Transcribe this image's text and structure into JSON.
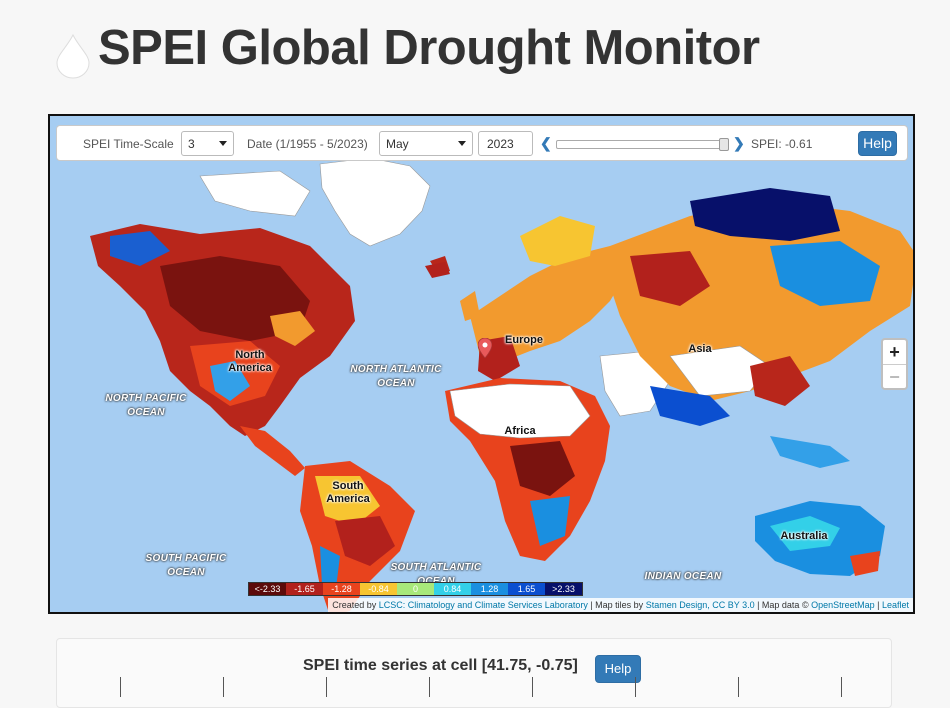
{
  "page": {
    "title": "SPEI Global Drought Monitor",
    "icon": "water-drop-icon"
  },
  "toolbar": {
    "timescale_label": "SPEI Time-Scale",
    "timescale_value": "3",
    "date_label": "Date (1/1955 - 5/2023)",
    "month_value": "May",
    "year_value": "2023",
    "prev_icon": "chevron-left-icon",
    "next_icon": "chevron-right-icon",
    "slider_position_fraction": 1.0,
    "spei_readout": "SPEI: -0.61",
    "help_label": "Help"
  },
  "map": {
    "zoom_in": "+",
    "zoom_out": "−",
    "continent_labels": {
      "north_america": "North America",
      "south_america": "South America",
      "europe": "Europe",
      "africa": "Africa",
      "asia": "Asia",
      "australia": "Australia"
    },
    "ocean_labels": {
      "north_pacific": "NORTH PACIFIC OCEAN",
      "north_atlantic": "NORTH ATLANTIC OCEAN",
      "south_pacific": "SOUTH PACIFIC OCEAN",
      "south_atlantic": "SOUTH ATLANTIC OCEAN",
      "indian": "INDIAN OCEAN"
    },
    "legend": [
      {
        "label": "<-2.33",
        "color": "#5c0a0a"
      },
      {
        "label": "-1.65",
        "color": "#b2211c"
      },
      {
        "label": "-1.28",
        "color": "#e8431d"
      },
      {
        "label": "-0.84",
        "color": "#f7c531"
      },
      {
        "label": "0",
        "color": "#a8e87a"
      },
      {
        "label": "0.84",
        "color": "#33d0e8"
      },
      {
        "label": "1.28",
        "color": "#1a8fe0"
      },
      {
        "label": "1.65",
        "color": "#0b4fd0"
      },
      {
        "label": ">2.33",
        "color": "#07106a"
      }
    ],
    "attribution": {
      "created_by": "Created by ",
      "lcsc_link": "LCSC: Climatology and Climate Services Laboratory",
      "tiles_by": " | Map tiles by ",
      "stamen_link": "Stamen Design, CC BY 3.0",
      "data_by": " | Map data © ",
      "osm_link": "OpenStreetMap",
      "sep": " | ",
      "leaflet_link": "Leaflet"
    },
    "colors": {
      "ocean": "#a6cdf2",
      "drought": "#c62a1b",
      "wet": "#1454c8",
      "neutral": "#f0b43a",
      "no_data": "#ffffff"
    }
  },
  "timeseries": {
    "title": "SPEI time series at cell [41.75, -0.75]",
    "help_label": "Help"
  }
}
